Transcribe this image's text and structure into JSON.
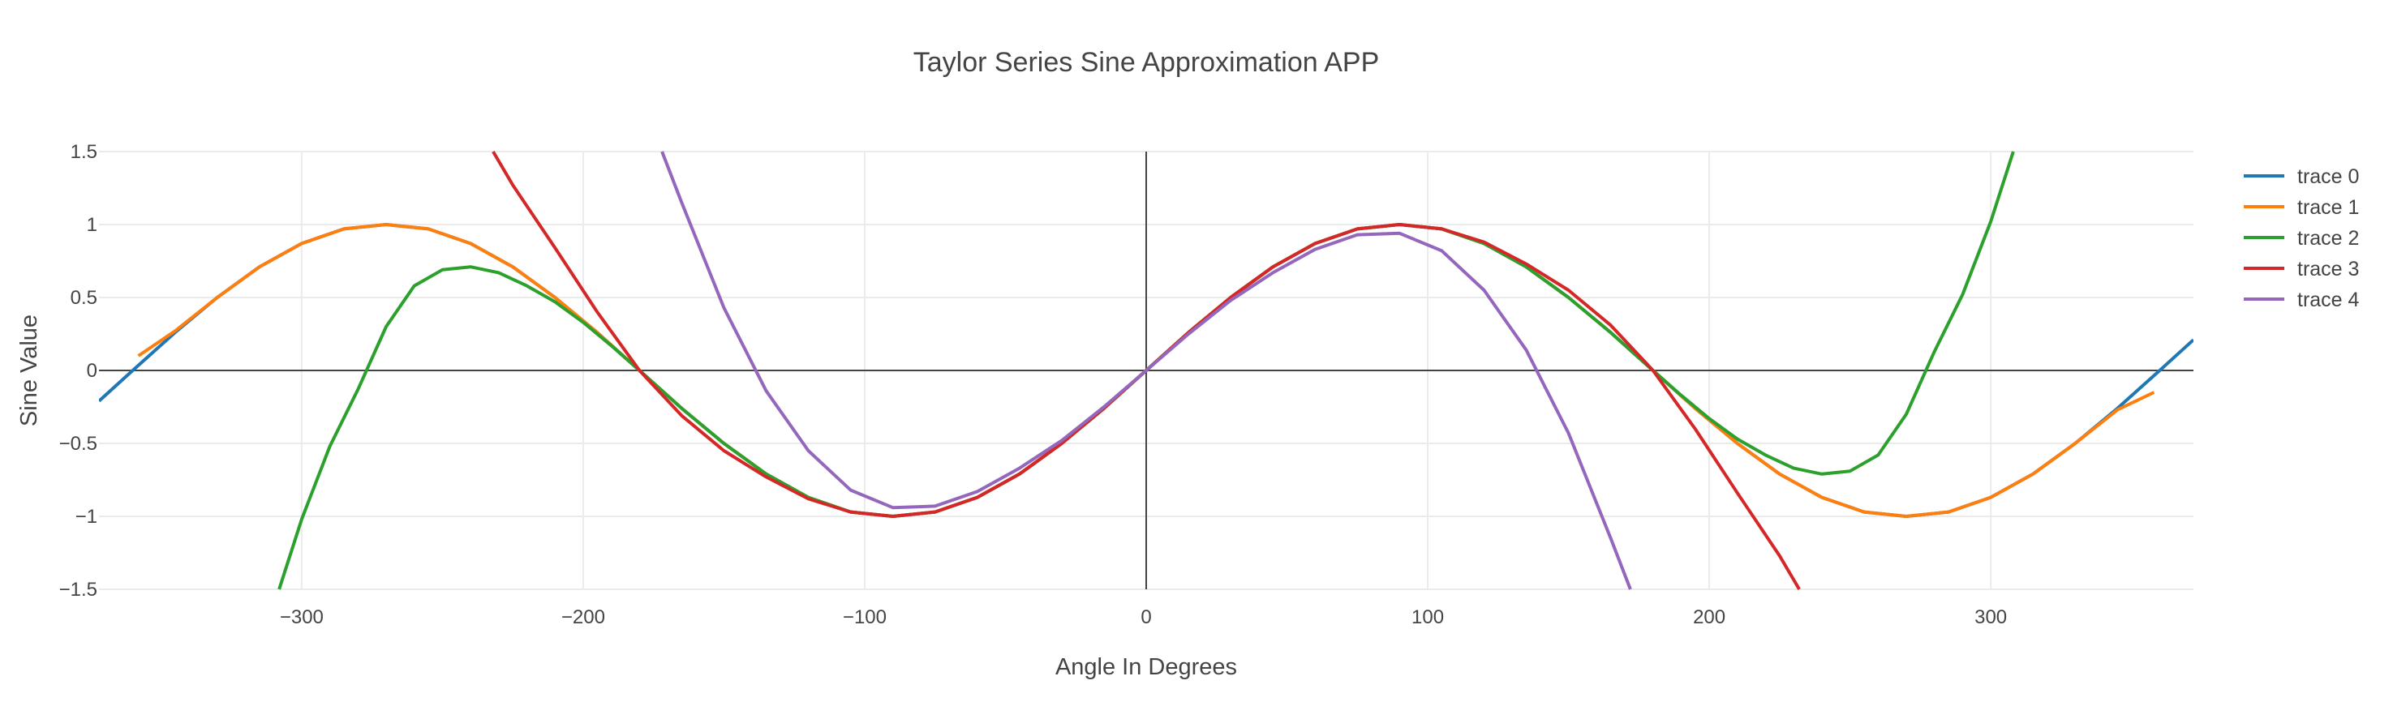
{
  "chart_data": {
    "type": "line",
    "title": "Taylor Series Sine Approximation APP",
    "xlabel": "Angle In Degrees",
    "ylabel": "Sine Value",
    "xlim": [
      -372,
      372
    ],
    "ylim": [
      -1.5,
      1.5
    ],
    "x_ticks": [
      -300,
      -200,
      -100,
      0,
      100,
      200,
      300
    ],
    "x_tick_labels": [
      "−300",
      "−200",
      "−100",
      "0",
      "100",
      "200",
      "300"
    ],
    "y_ticks": [
      -1.5,
      -1,
      -0.5,
      0,
      0.5,
      1,
      1.5
    ],
    "y_tick_labels": [
      "−1.5",
      "−1",
      "−0.5",
      "0",
      "0.5",
      "1",
      "1.5"
    ],
    "grid": true,
    "zero_lines": true,
    "legend_position": "right",
    "series": [
      {
        "name": "trace 0",
        "color": "#1f77b4",
        "x": [
          -372,
          -360,
          -345,
          -330,
          -315,
          -300,
          -285,
          -270,
          -255,
          -240,
          -225,
          -210,
          -195,
          -180,
          -165,
          -150,
          -135,
          -120,
          -105,
          -90,
          -75,
          -60,
          -45,
          -30,
          -15,
          0,
          15,
          30,
          45,
          60,
          75,
          90,
          105,
          120,
          135,
          150,
          165,
          180,
          195,
          210,
          225,
          240,
          255,
          270,
          285,
          300,
          315,
          330,
          345,
          360,
          372
        ],
        "y": [
          -0.21,
          0,
          0.26,
          0.5,
          0.71,
          0.87,
          0.97,
          1,
          0.97,
          0.87,
          0.71,
          0.5,
          0.26,
          0,
          -0.26,
          -0.5,
          -0.71,
          -0.87,
          -0.97,
          -1,
          -0.97,
          -0.87,
          -0.71,
          -0.5,
          -0.26,
          0,
          0.26,
          0.5,
          0.71,
          0.87,
          0.97,
          1,
          0.97,
          0.87,
          0.71,
          0.5,
          0.26,
          0,
          -0.26,
          -0.5,
          -0.71,
          -0.87,
          -0.97,
          -1,
          -0.97,
          -0.87,
          -0.71,
          -0.5,
          -0.26,
          0,
          0.21
        ]
      },
      {
        "name": "trace 1",
        "color": "#ff7f0e",
        "x": [
          -358,
          -345,
          -330,
          -315,
          -300,
          -285,
          -270,
          -255,
          -240,
          -225,
          -210,
          -195,
          -180,
          -165,
          -150,
          -135,
          -120,
          -105,
          -90,
          -75,
          -60,
          -45,
          -30,
          -15,
          0,
          15,
          30,
          45,
          60,
          75,
          90,
          105,
          120,
          135,
          150,
          165,
          180,
          195,
          210,
          225,
          240,
          255,
          270,
          285,
          300,
          315,
          330,
          345,
          358
        ],
        "y": [
          0.1,
          0.27,
          0.5,
          0.71,
          0.87,
          0.97,
          1,
          0.97,
          0.87,
          0.71,
          0.5,
          0.26,
          0,
          -0.26,
          -0.5,
          -0.71,
          -0.87,
          -0.97,
          -1,
          -0.97,
          -0.87,
          -0.71,
          -0.5,
          -0.26,
          0,
          0.26,
          0.5,
          0.71,
          0.87,
          0.97,
          1,
          0.97,
          0.87,
          0.71,
          0.5,
          0.26,
          0,
          -0.26,
          -0.5,
          -0.71,
          -0.87,
          -0.97,
          -1,
          -0.97,
          -0.87,
          -0.71,
          -0.5,
          -0.27,
          -0.15
        ]
      },
      {
        "name": "trace 2",
        "color": "#2ca02c",
        "x": [
          -308,
          -300,
          -290,
          -280,
          -270,
          -260,
          -250,
          -240,
          -230,
          -220,
          -210,
          -200,
          -190,
          -180,
          -165,
          -150,
          -135,
          -120,
          -105,
          -90,
          -75,
          -60,
          -45,
          -30,
          -15,
          0,
          15,
          30,
          45,
          60,
          75,
          90,
          105,
          120,
          135,
          150,
          165,
          180,
          190,
          200,
          210,
          220,
          230,
          240,
          250,
          260,
          270,
          280,
          290,
          300,
          308
        ],
        "y": [
          -1.5,
          -1.02,
          -0.52,
          -0.13,
          0.3,
          0.58,
          0.69,
          0.71,
          0.67,
          0.58,
          0.47,
          0.33,
          0.17,
          0,
          -0.26,
          -0.5,
          -0.71,
          -0.87,
          -0.97,
          -1,
          -0.97,
          -0.87,
          -0.71,
          -0.5,
          -0.26,
          0,
          0.26,
          0.5,
          0.71,
          0.87,
          0.97,
          1,
          0.97,
          0.87,
          0.71,
          0.5,
          0.26,
          0,
          -0.17,
          -0.33,
          -0.47,
          -0.58,
          -0.67,
          -0.71,
          -0.69,
          -0.58,
          -0.3,
          0.13,
          0.52,
          1.02,
          1.5
        ]
      },
      {
        "name": "trace 3",
        "color": "#d62728",
        "x": [
          -232,
          -225,
          -210,
          -195,
          -180,
          -165,
          -150,
          -135,
          -120,
          -105,
          -90,
          -75,
          -60,
          -45,
          -30,
          -15,
          0,
          15,
          30,
          45,
          60,
          75,
          90,
          105,
          120,
          135,
          150,
          165,
          180,
          195,
          210,
          225,
          232
        ],
        "y": [
          1.5,
          1.27,
          0.84,
          0.4,
          0,
          -0.31,
          -0.55,
          -0.73,
          -0.88,
          -0.97,
          -1,
          -0.97,
          -0.87,
          -0.71,
          -0.5,
          -0.26,
          0,
          0.26,
          0.5,
          0.71,
          0.87,
          0.97,
          1,
          0.97,
          0.88,
          0.73,
          0.55,
          0.31,
          0,
          -0.4,
          -0.84,
          -1.27,
          -1.5
        ]
      },
      {
        "name": "trace 4",
        "color": "#9467bd",
        "x": [
          -172,
          -165,
          -150,
          -135,
          -120,
          -105,
          -90,
          -75,
          -60,
          -45,
          -30,
          -15,
          0,
          15,
          30,
          45,
          60,
          75,
          90,
          105,
          120,
          135,
          150,
          165,
          172
        ],
        "y": [
          1.5,
          1.15,
          0.43,
          -0.14,
          -0.55,
          -0.82,
          -0.94,
          -0.93,
          -0.83,
          -0.67,
          -0.48,
          -0.25,
          0,
          0.25,
          0.48,
          0.67,
          0.83,
          0.93,
          0.94,
          0.82,
          0.55,
          0.14,
          -0.43,
          -1.15,
          -1.5
        ]
      }
    ]
  }
}
